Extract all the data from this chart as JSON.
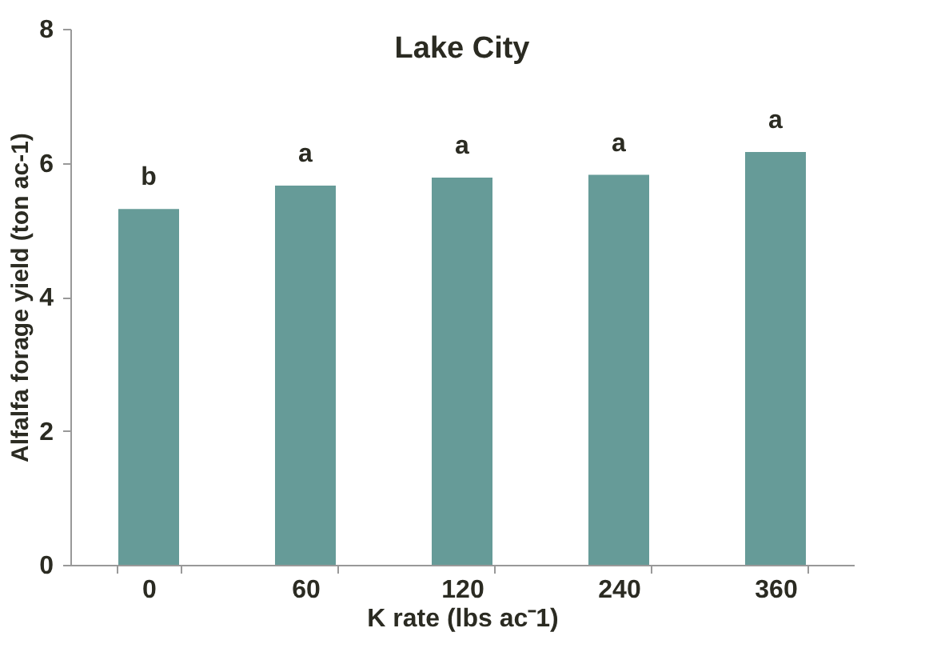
{
  "chart_data": {
    "type": "bar",
    "title": "Lake City",
    "xlabel": "K rate (lbs ac⁻1)",
    "ylabel": "Alfalfa forage yield (ton ac-1)",
    "categories": [
      "0",
      "60",
      "120",
      "240",
      "360"
    ],
    "values": [
      5.31,
      5.66,
      5.78,
      5.82,
      6.16
    ],
    "color": "#669b98",
    "ylim": [
      0,
      8
    ],
    "yticks": [
      0,
      2,
      4,
      6,
      8
    ],
    "grid": false,
    "annotations": [
      {
        "text": "b",
        "x": "0",
        "y": 5.31
      },
      {
        "text": "a",
        "x": "60",
        "y": 5.66
      },
      {
        "text": "a",
        "x": "120",
        "y": 5.78
      },
      {
        "text": "a",
        "x": "240",
        "y": 5.82
      },
      {
        "text": "a",
        "x": "360",
        "y": 6.16
      }
    ]
  }
}
